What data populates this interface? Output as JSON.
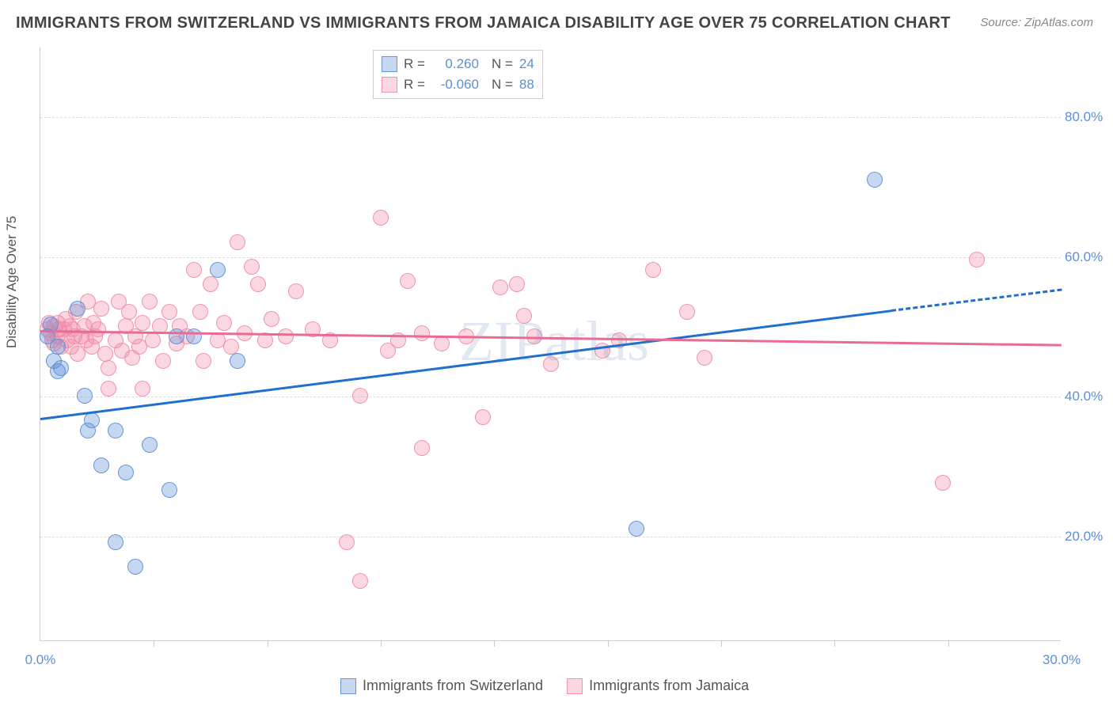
{
  "title": "IMMIGRANTS FROM SWITZERLAND VS IMMIGRANTS FROM JAMAICA DISABILITY AGE OVER 75 CORRELATION CHART",
  "source_label": "Source: ",
  "source_value": "ZipAtlas.com",
  "ylabel": "Disability Age Over 75",
  "watermark": "ZIPatlas",
  "chart": {
    "type": "scatter",
    "xlim": [
      0,
      30
    ],
    "ylim": [
      5,
      90
    ],
    "xtick_labels": [
      "0.0%",
      "30.0%"
    ],
    "xtick_positions": [
      0,
      30
    ],
    "minor_xticks": [
      3.33,
      6.67,
      10,
      13.33,
      16.67,
      20,
      23.33,
      26.67
    ],
    "ytick_labels": [
      "20.0%",
      "40.0%",
      "60.0%",
      "80.0%"
    ],
    "ytick_positions": [
      20,
      40,
      60,
      80
    ],
    "background_color": "#ffffff",
    "grid_color": "#dddddd",
    "axis_color": "#cccccc",
    "label_fontsize": 17,
    "tick_color": "#5b8fd6",
    "marker_radius": 10,
    "marker_fill_opacity": 0.35,
    "marker_stroke_opacity": 0.9,
    "marker_stroke_width": 1.5
  },
  "series": [
    {
      "name": "Immigrants from Switzerland",
      "color": "#5b8fd6",
      "fill": "rgba(91,143,214,0.35)",
      "stroke": "rgba(91,143,214,0.9)",
      "R": "0.260",
      "N": "24",
      "trend": {
        "x1": 0,
        "y1": 37,
        "x2": 25,
        "y2": 52.5,
        "color": "#1f6fd0",
        "width": 3,
        "dashed_x2": 30,
        "dashed_y2": 55.5
      },
      "points": [
        [
          0.2,
          48.5
        ],
        [
          0.3,
          50.2
        ],
        [
          0.4,
          45
        ],
        [
          0.5,
          43.5
        ],
        [
          0.5,
          47
        ],
        [
          0.6,
          44
        ],
        [
          1.1,
          52.5
        ],
        [
          1.3,
          40
        ],
        [
          1.4,
          35
        ],
        [
          1.5,
          36.5
        ],
        [
          1.8,
          30
        ],
        [
          2.2,
          35
        ],
        [
          2.2,
          19
        ],
        [
          2.5,
          29
        ],
        [
          2.8,
          15.5
        ],
        [
          3.2,
          33
        ],
        [
          3.8,
          26.5
        ],
        [
          4.0,
          48.5
        ],
        [
          4.5,
          48.5
        ],
        [
          5.2,
          58
        ],
        [
          5.8,
          45
        ],
        [
          17.5,
          21
        ],
        [
          24.5,
          71
        ]
      ]
    },
    {
      "name": "Immigrants from Jamaica",
      "color": "#f08ca8",
      "fill": "rgba(240,140,168,0.35)",
      "stroke": "rgba(240,140,168,0.9)",
      "R": "-0.060",
      "N": "88",
      "trend": {
        "x1": 0,
        "y1": 49.5,
        "x2": 30,
        "y2": 47.5,
        "color": "#e96b93",
        "width": 3
      },
      "points": [
        [
          0.2,
          49.5
        ],
        [
          0.25,
          50.5
        ],
        [
          0.3,
          49
        ],
        [
          0.35,
          48
        ],
        [
          0.4,
          50
        ],
        [
          0.4,
          47.5
        ],
        [
          0.5,
          48.5
        ],
        [
          0.5,
          50.5
        ],
        [
          0.55,
          49.5
        ],
        [
          0.6,
          47
        ],
        [
          0.7,
          49.5
        ],
        [
          0.75,
          51
        ],
        [
          0.8,
          48
        ],
        [
          0.85,
          50
        ],
        [
          0.9,
          47
        ],
        [
          0.95,
          49.5
        ],
        [
          1.0,
          48.5
        ],
        [
          1.05,
          52
        ],
        [
          1.1,
          46
        ],
        [
          1.2,
          48.5
        ],
        [
          1.3,
          50
        ],
        [
          1.35,
          48
        ],
        [
          1.4,
          53.5
        ],
        [
          1.5,
          47
        ],
        [
          1.55,
          50.5
        ],
        [
          1.6,
          48.5
        ],
        [
          1.7,
          49.5
        ],
        [
          1.8,
          52.5
        ],
        [
          1.9,
          46
        ],
        [
          2.0,
          41
        ],
        [
          2.0,
          44
        ],
        [
          2.2,
          48
        ],
        [
          2.3,
          53.5
        ],
        [
          2.4,
          46.5
        ],
        [
          2.5,
          50
        ],
        [
          2.6,
          52
        ],
        [
          2.7,
          45.5
        ],
        [
          2.8,
          48.5
        ],
        [
          2.9,
          47
        ],
        [
          3.0,
          41
        ],
        [
          3.0,
          50.5
        ],
        [
          3.2,
          53.5
        ],
        [
          3.3,
          48
        ],
        [
          3.5,
          50
        ],
        [
          3.6,
          45
        ],
        [
          3.8,
          52
        ],
        [
          4.0,
          47.5
        ],
        [
          4.1,
          50
        ],
        [
          4.3,
          48.5
        ],
        [
          4.5,
          58
        ],
        [
          4.7,
          52
        ],
        [
          4.8,
          45
        ],
        [
          5.0,
          56
        ],
        [
          5.2,
          48
        ],
        [
          5.4,
          50.5
        ],
        [
          5.6,
          47
        ],
        [
          5.8,
          62
        ],
        [
          6.0,
          49
        ],
        [
          6.2,
          58.5
        ],
        [
          6.4,
          56
        ],
        [
          6.6,
          48
        ],
        [
          6.8,
          51
        ],
        [
          7.2,
          48.5
        ],
        [
          7.5,
          55
        ],
        [
          8.0,
          49.5
        ],
        [
          8.5,
          48
        ],
        [
          9.0,
          19
        ],
        [
          9.4,
          13.5
        ],
        [
          9.4,
          40
        ],
        [
          10.0,
          65.5
        ],
        [
          10.2,
          46.5
        ],
        [
          10.5,
          48
        ],
        [
          10.8,
          56.5
        ],
        [
          11.2,
          49
        ],
        [
          11.2,
          32.5
        ],
        [
          11.8,
          47.5
        ],
        [
          12.5,
          48.5
        ],
        [
          13.0,
          37
        ],
        [
          13.5,
          55.5
        ],
        [
          14.0,
          56
        ],
        [
          14.2,
          51.5
        ],
        [
          14.5,
          48.5
        ],
        [
          15.0,
          44.5
        ],
        [
          16.5,
          46.5
        ],
        [
          17.0,
          48
        ],
        [
          18.0,
          58
        ],
        [
          19.0,
          52
        ],
        [
          19.5,
          45.5
        ],
        [
          26.5,
          27.5
        ],
        [
          27.5,
          59.5
        ]
      ]
    }
  ],
  "legend_top": {
    "R_label": "R =",
    "N_label": "N ="
  },
  "legend_bottom_labels": [
    "Immigrants from Switzerland",
    "Immigrants from Jamaica"
  ]
}
